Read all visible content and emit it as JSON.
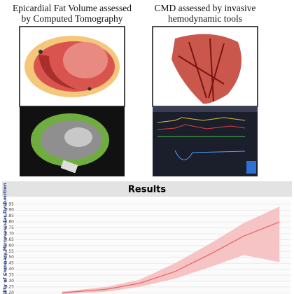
{
  "panels": [
    {
      "lines": [
        "Epicardial Fat Volume assessed",
        "by Computed Tomography"
      ]
    },
    {
      "lines": [
        "CMD assessed by invasive",
        "hemodynamic tools"
      ]
    }
  ],
  "results": {
    "title": "Results"
  },
  "chart_data": {
    "type": "line",
    "y_label": "ility of Coronary Microvascular Dysfunction",
    "x": [
      17,
      33,
      45,
      58,
      71,
      83,
      96
    ],
    "xlim": [
      0,
      100
    ],
    "series": [
      {
        "color": "#e8666a",
        "values": [
          0.2,
          0.23,
          0.28,
          0.38,
          0.53,
          0.68,
          0.8
        ]
      }
    ],
    "band_lower": [
      0.19,
      0.21,
      0.25,
      0.32,
      0.42,
      0.52,
      0.46
    ],
    "band_upper": [
      0.21,
      0.25,
      0.31,
      0.45,
      0.62,
      0.79,
      0.93
    ],
    "band_color": "#f6c4c5",
    "ylim": [
      0.19,
      0.99
    ],
    "yticks": [
      0.95,
      {
        "value": 0.9,
        "label": "0.90"
      },
      0.85,
      {
        "value": 0.8,
        "label": "0.80"
      },
      0.75,
      {
        "value": 0.7,
        "label": "0.70"
      },
      0.65,
      {
        "value": 0.6,
        "label": "0.60"
      },
      0.55,
      {
        "value": 0.5,
        "label": "0.50"
      },
      0.45,
      {
        "value": 0.4,
        "label": "0.40"
      },
      0.35,
      {
        "value": 0.3,
        "label": "0.30"
      },
      0.25,
      {
        "value": 0.2,
        "label": "0.20"
      }
    ],
    "grid": true
  }
}
